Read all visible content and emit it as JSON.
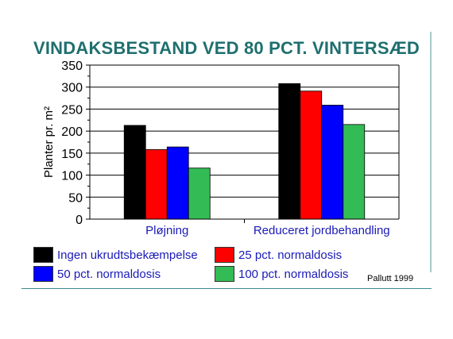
{
  "slide": {
    "title": "VINDAKSBESTAND VED 80 PCT. VINTERSÆD",
    "source": "Pallutt 1999"
  },
  "chart_data": {
    "type": "bar",
    "title": "VINDAKSBESTAND VED 80 PCT. VINTERSÆD",
    "ylabel": "Planter pr. m²",
    "xlabel": "",
    "ylim": [
      0,
      350
    ],
    "yticks": [
      0,
      50,
      100,
      150,
      200,
      250,
      300,
      350
    ],
    "grid": true,
    "legend_position": "bottom",
    "categories": [
      "Pløjning",
      "Reduceret jordbehandling"
    ],
    "series": [
      {
        "name": "Ingen ukrudtsbekæmpelse",
        "color": "#000000",
        "values": [
          213,
          308
        ]
      },
      {
        "name": "25 pct. normaldosis",
        "color": "#ff0000",
        "values": [
          158,
          291
        ]
      },
      {
        "name": "50 pct. normaldosis",
        "color": "#0000ff",
        "values": [
          164,
          259
        ]
      },
      {
        "name": "100 pct. normaldosis",
        "color": "#33bb55",
        "values": [
          116,
          215
        ]
      }
    ]
  }
}
